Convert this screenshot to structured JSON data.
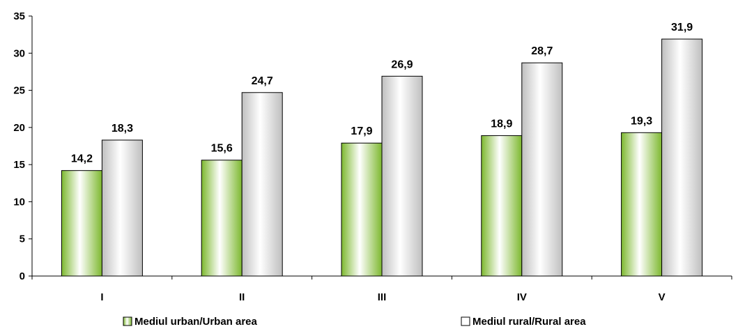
{
  "chart_data": {
    "type": "bar",
    "categories": [
      "I",
      "II",
      "III",
      "IV",
      "V"
    ],
    "series": [
      {
        "name": "Mediul urban/Urban area",
        "values": [
          14.2,
          15.6,
          17.9,
          18.9,
          19.3
        ],
        "labels": [
          "14,2",
          "15,6",
          "17,9",
          "18,9",
          "19,3"
        ],
        "color": "#92c83e"
      },
      {
        "name": "Mediul rural/Rural area",
        "values": [
          18.3,
          24.7,
          26.9,
          28.7,
          31.9
        ],
        "labels": [
          "18,3",
          "24,7",
          "26,9",
          "28,7",
          "31,9"
        ],
        "color": "#d9d9d9"
      }
    ],
    "ylim": [
      0,
      35
    ],
    "yticks": [
      "0",
      "5",
      "10",
      "15",
      "20",
      "25",
      "30",
      "35"
    ],
    "grid": false,
    "legend_position": "bottom"
  }
}
